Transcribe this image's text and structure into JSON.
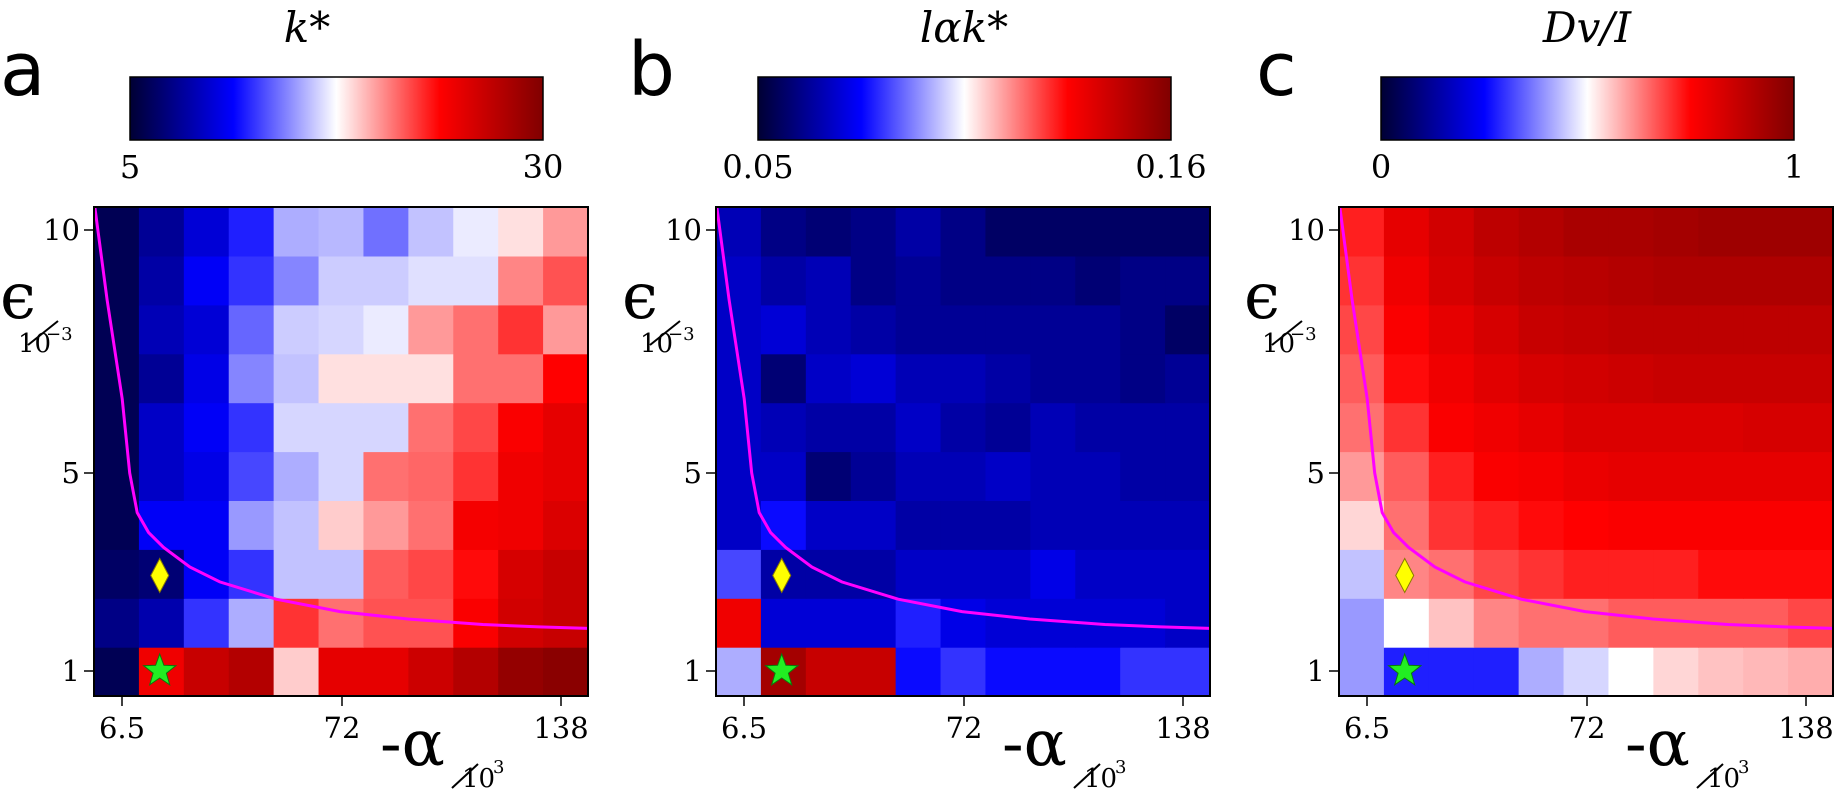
{
  "chart_data": [
    {
      "type": "heatmap",
      "panel_label": "a",
      "colorbar": {
        "title": "k*",
        "min_label": "5",
        "max_label": "30",
        "range": [
          5,
          30
        ]
      },
      "x_ticks": [
        "6.5",
        "72",
        "138"
      ],
      "y_ticks": [
        "10",
        "5",
        "1"
      ],
      "xlabel": {
        "main": "-α",
        "sub": "10",
        "sup": "3"
      },
      "ylabel": {
        "main": "ϵ",
        "sub": "10",
        "sup": "−3"
      },
      "norm_values_bottom_to_top": [
        [
          0.04,
          0.78,
          0.86,
          0.9,
          0.55,
          0.8,
          0.8,
          0.85,
          0.9,
          0.96,
          0.98
        ],
        [
          0.1,
          0.15,
          0.3,
          0.42,
          0.7,
          0.64,
          0.67,
          0.67,
          0.76,
          0.84,
          0.86
        ],
        [
          0.06,
          0.08,
          0.24,
          0.3,
          0.44,
          0.44,
          0.66,
          0.68,
          0.74,
          0.83,
          0.86
        ],
        [
          0.04,
          0.24,
          0.24,
          0.4,
          0.44,
          0.55,
          0.6,
          0.64,
          0.77,
          0.78,
          0.82
        ],
        [
          0.04,
          0.18,
          0.22,
          0.32,
          0.42,
          0.46,
          0.64,
          0.65,
          0.7,
          0.78,
          0.8
        ],
        [
          0.04,
          0.18,
          0.24,
          0.3,
          0.46,
          0.46,
          0.46,
          0.64,
          0.68,
          0.76,
          0.8
        ],
        [
          0.04,
          0.12,
          0.22,
          0.38,
          0.44,
          0.53,
          0.53,
          0.53,
          0.64,
          0.64,
          0.75
        ],
        [
          0.04,
          0.16,
          0.2,
          0.35,
          0.45,
          0.46,
          0.48,
          0.6,
          0.64,
          0.7,
          0.6
        ],
        [
          0.04,
          0.14,
          0.24,
          0.3,
          0.38,
          0.45,
          0.45,
          0.47,
          0.47,
          0.62,
          0.67
        ],
        [
          0.04,
          0.12,
          0.2,
          0.28,
          0.42,
          0.43,
          0.36,
          0.44,
          0.48,
          0.53,
          0.6
        ]
      ],
      "boundary_curve": [
        [
          6.5,
          10.5
        ],
        [
          10,
          8.5
        ],
        [
          14,
          6.5
        ],
        [
          16,
          5.0
        ],
        [
          18,
          4.2
        ],
        [
          21,
          3.8
        ],
        [
          25,
          3.5
        ],
        [
          32,
          3.1
        ],
        [
          40,
          2.8
        ],
        [
          55,
          2.45
        ],
        [
          72,
          2.2
        ],
        [
          90,
          2.05
        ],
        [
          110,
          1.94
        ],
        [
          125,
          1.89
        ],
        [
          138,
          1.86
        ]
      ],
      "markers": {
        "diamond": [
          24,
          2.93
        ],
        "star": [
          24,
          1.0
        ]
      }
    },
    {
      "type": "heatmap",
      "panel_label": "b",
      "colorbar": {
        "title": "lαk*",
        "min_label": "0.05",
        "max_label": "0.16",
        "range": [
          0.05,
          0.16
        ]
      },
      "x_ticks": [
        "6.5",
        "72",
        "138"
      ],
      "y_ticks": [
        "10",
        "5",
        "1"
      ],
      "xlabel": {
        "main": "-α",
        "sub": "10",
        "sup": "3"
      },
      "ylabel": {
        "main": "ϵ",
        "sub": "10",
        "sup": "−3"
      },
      "norm_values_bottom_to_top": [
        [
          0.42,
          0.93,
          0.86,
          0.86,
          0.26,
          0.3,
          0.26,
          0.26,
          0.26,
          0.3,
          0.3
        ],
        [
          0.78,
          0.2,
          0.2,
          0.2,
          0.28,
          0.22,
          0.2,
          0.2,
          0.2,
          0.2,
          0.18
        ],
        [
          0.32,
          0.14,
          0.14,
          0.14,
          0.18,
          0.18,
          0.18,
          0.22,
          0.18,
          0.18,
          0.18
        ],
        [
          0.18,
          0.26,
          0.18,
          0.18,
          0.14,
          0.14,
          0.14,
          0.16,
          0.16,
          0.16,
          0.16
        ],
        [
          0.18,
          0.18,
          0.08,
          0.12,
          0.16,
          0.16,
          0.18,
          0.16,
          0.16,
          0.14,
          0.14
        ],
        [
          0.18,
          0.16,
          0.14,
          0.14,
          0.18,
          0.14,
          0.12,
          0.16,
          0.14,
          0.14,
          0.14
        ],
        [
          0.18,
          0.08,
          0.18,
          0.2,
          0.16,
          0.16,
          0.14,
          0.12,
          0.12,
          0.1,
          0.12
        ],
        [
          0.18,
          0.2,
          0.16,
          0.14,
          0.12,
          0.12,
          0.12,
          0.12,
          0.12,
          0.1,
          0.06
        ],
        [
          0.18,
          0.14,
          0.16,
          0.1,
          0.12,
          0.1,
          0.1,
          0.1,
          0.08,
          0.1,
          0.1
        ],
        [
          0.16,
          0.1,
          0.08,
          0.1,
          0.14,
          0.1,
          0.06,
          0.06,
          0.06,
          0.06,
          0.06
        ]
      ],
      "boundary_curve": [
        [
          6.5,
          10.5
        ],
        [
          10,
          8.5
        ],
        [
          14,
          6.5
        ],
        [
          16,
          5.0
        ],
        [
          18,
          4.2
        ],
        [
          21,
          3.8
        ],
        [
          25,
          3.5
        ],
        [
          32,
          3.1
        ],
        [
          40,
          2.8
        ],
        [
          55,
          2.45
        ],
        [
          72,
          2.2
        ],
        [
          90,
          2.05
        ],
        [
          110,
          1.94
        ],
        [
          125,
          1.89
        ],
        [
          138,
          1.86
        ]
      ],
      "markers": {
        "diamond": [
          24,
          2.93
        ],
        "star": [
          24,
          1.0
        ]
      }
    },
    {
      "type": "heatmap",
      "panel_label": "c",
      "colorbar": {
        "title": "Dv/I",
        "min_label": "0",
        "max_label": "1",
        "range": [
          0,
          1
        ]
      },
      "x_ticks": [
        "6.5",
        "72",
        "138"
      ],
      "y_ticks": [
        "10",
        "5",
        "1"
      ],
      "xlabel": {
        "main": "-α",
        "sub": "10",
        "sup": "3"
      },
      "ylabel": {
        "main": "ϵ",
        "sub": "10",
        "sup": "−3"
      },
      "norm_values_bottom_to_top": [
        [
          0.4,
          0.28,
          0.28,
          0.28,
          0.42,
          0.46,
          0.5,
          0.54,
          0.56,
          0.57,
          0.58
        ],
        [
          0.4,
          0.5,
          0.56,
          0.62,
          0.64,
          0.64,
          0.66,
          0.66,
          0.66,
          0.66,
          0.68
        ],
        [
          0.44,
          0.62,
          0.64,
          0.68,
          0.7,
          0.72,
          0.72,
          0.72,
          0.74,
          0.74,
          0.74
        ],
        [
          0.54,
          0.64,
          0.7,
          0.72,
          0.74,
          0.75,
          0.76,
          0.76,
          0.76,
          0.76,
          0.76
        ],
        [
          0.6,
          0.66,
          0.72,
          0.76,
          0.77,
          0.79,
          0.8,
          0.8,
          0.8,
          0.8,
          0.8
        ],
        [
          0.64,
          0.7,
          0.76,
          0.78,
          0.8,
          0.82,
          0.82,
          0.82,
          0.82,
          0.83,
          0.83
        ],
        [
          0.66,
          0.74,
          0.78,
          0.81,
          0.83,
          0.84,
          0.85,
          0.86,
          0.86,
          0.86,
          0.86
        ],
        [
          0.68,
          0.76,
          0.8,
          0.83,
          0.86,
          0.87,
          0.88,
          0.88,
          0.88,
          0.88,
          0.88
        ],
        [
          0.7,
          0.78,
          0.83,
          0.86,
          0.88,
          0.89,
          0.9,
          0.91,
          0.91,
          0.91,
          0.91
        ],
        [
          0.72,
          0.8,
          0.84,
          0.88,
          0.9,
          0.92,
          0.92,
          0.93,
          0.94,
          0.94,
          0.94
        ]
      ],
      "boundary_curve": [
        [
          6.5,
          10.5
        ],
        [
          10,
          8.5
        ],
        [
          14,
          6.5
        ],
        [
          16,
          5.0
        ],
        [
          18,
          4.2
        ],
        [
          21,
          3.8
        ],
        [
          25,
          3.5
        ],
        [
          32,
          3.1
        ],
        [
          40,
          2.8
        ],
        [
          55,
          2.45
        ],
        [
          72,
          2.2
        ],
        [
          90,
          2.05
        ],
        [
          110,
          1.94
        ],
        [
          125,
          1.89
        ],
        [
          138,
          1.86
        ]
      ],
      "markers": {
        "diamond": [
          24,
          2.93
        ],
        "star": [
          24,
          1.0
        ]
      }
    }
  ],
  "colors": {
    "boundary_line": "#ff00ff",
    "diamond": "#ffff00",
    "star": "#22ee22",
    "colormap": [
      "#000033",
      "#0000ff",
      "#ffffff",
      "#ff0000",
      "#800000"
    ]
  }
}
